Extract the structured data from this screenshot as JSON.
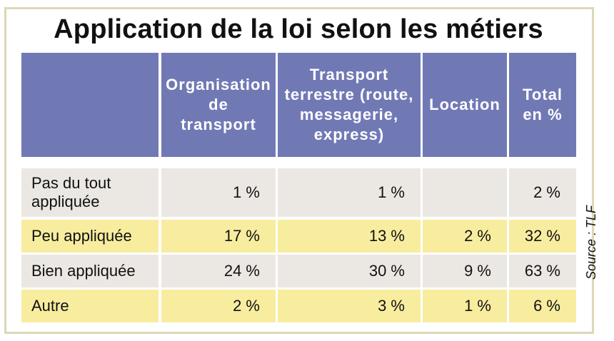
{
  "title": "Application de la loi selon les métiers",
  "source": "Source : TLF",
  "colors": {
    "header_bg": "#7179b5",
    "row_grey": "#ebe8e3",
    "row_yellow": "#f8ec9f",
    "frame": "#ddd8b6"
  },
  "chart_data": {
    "type": "table",
    "title": "Application de la loi selon les métiers",
    "columns": [
      "",
      "Organisation de transport",
      "Transport terrestre (route, messagerie, express)",
      "Location",
      "Total en %"
    ],
    "header_lines": [
      [],
      [
        "Organisation",
        "de",
        "transport"
      ],
      [
        "Transport",
        "terrestre (route,",
        "messagerie,",
        "express)"
      ],
      [
        "Location"
      ],
      [
        "Total",
        "en %"
      ]
    ],
    "rows": [
      {
        "label_lines": [
          "Pas du tout",
          "appliquée"
        ],
        "cells": [
          "1 %",
          "1 %",
          "",
          "2 %"
        ]
      },
      {
        "label_lines": [
          "Peu appliquée"
        ],
        "cells": [
          "17 %",
          "13 %",
          "2 %",
          "32 %"
        ]
      },
      {
        "label_lines": [
          "Bien appliquée"
        ],
        "cells": [
          "24 %",
          "30 %",
          "9 %",
          "63 %"
        ]
      },
      {
        "label_lines": [
          "Autre"
        ],
        "cells": [
          "2 %",
          "3 %",
          "1 %",
          "6 %"
        ]
      }
    ],
    "source": "Source : TLF"
  }
}
